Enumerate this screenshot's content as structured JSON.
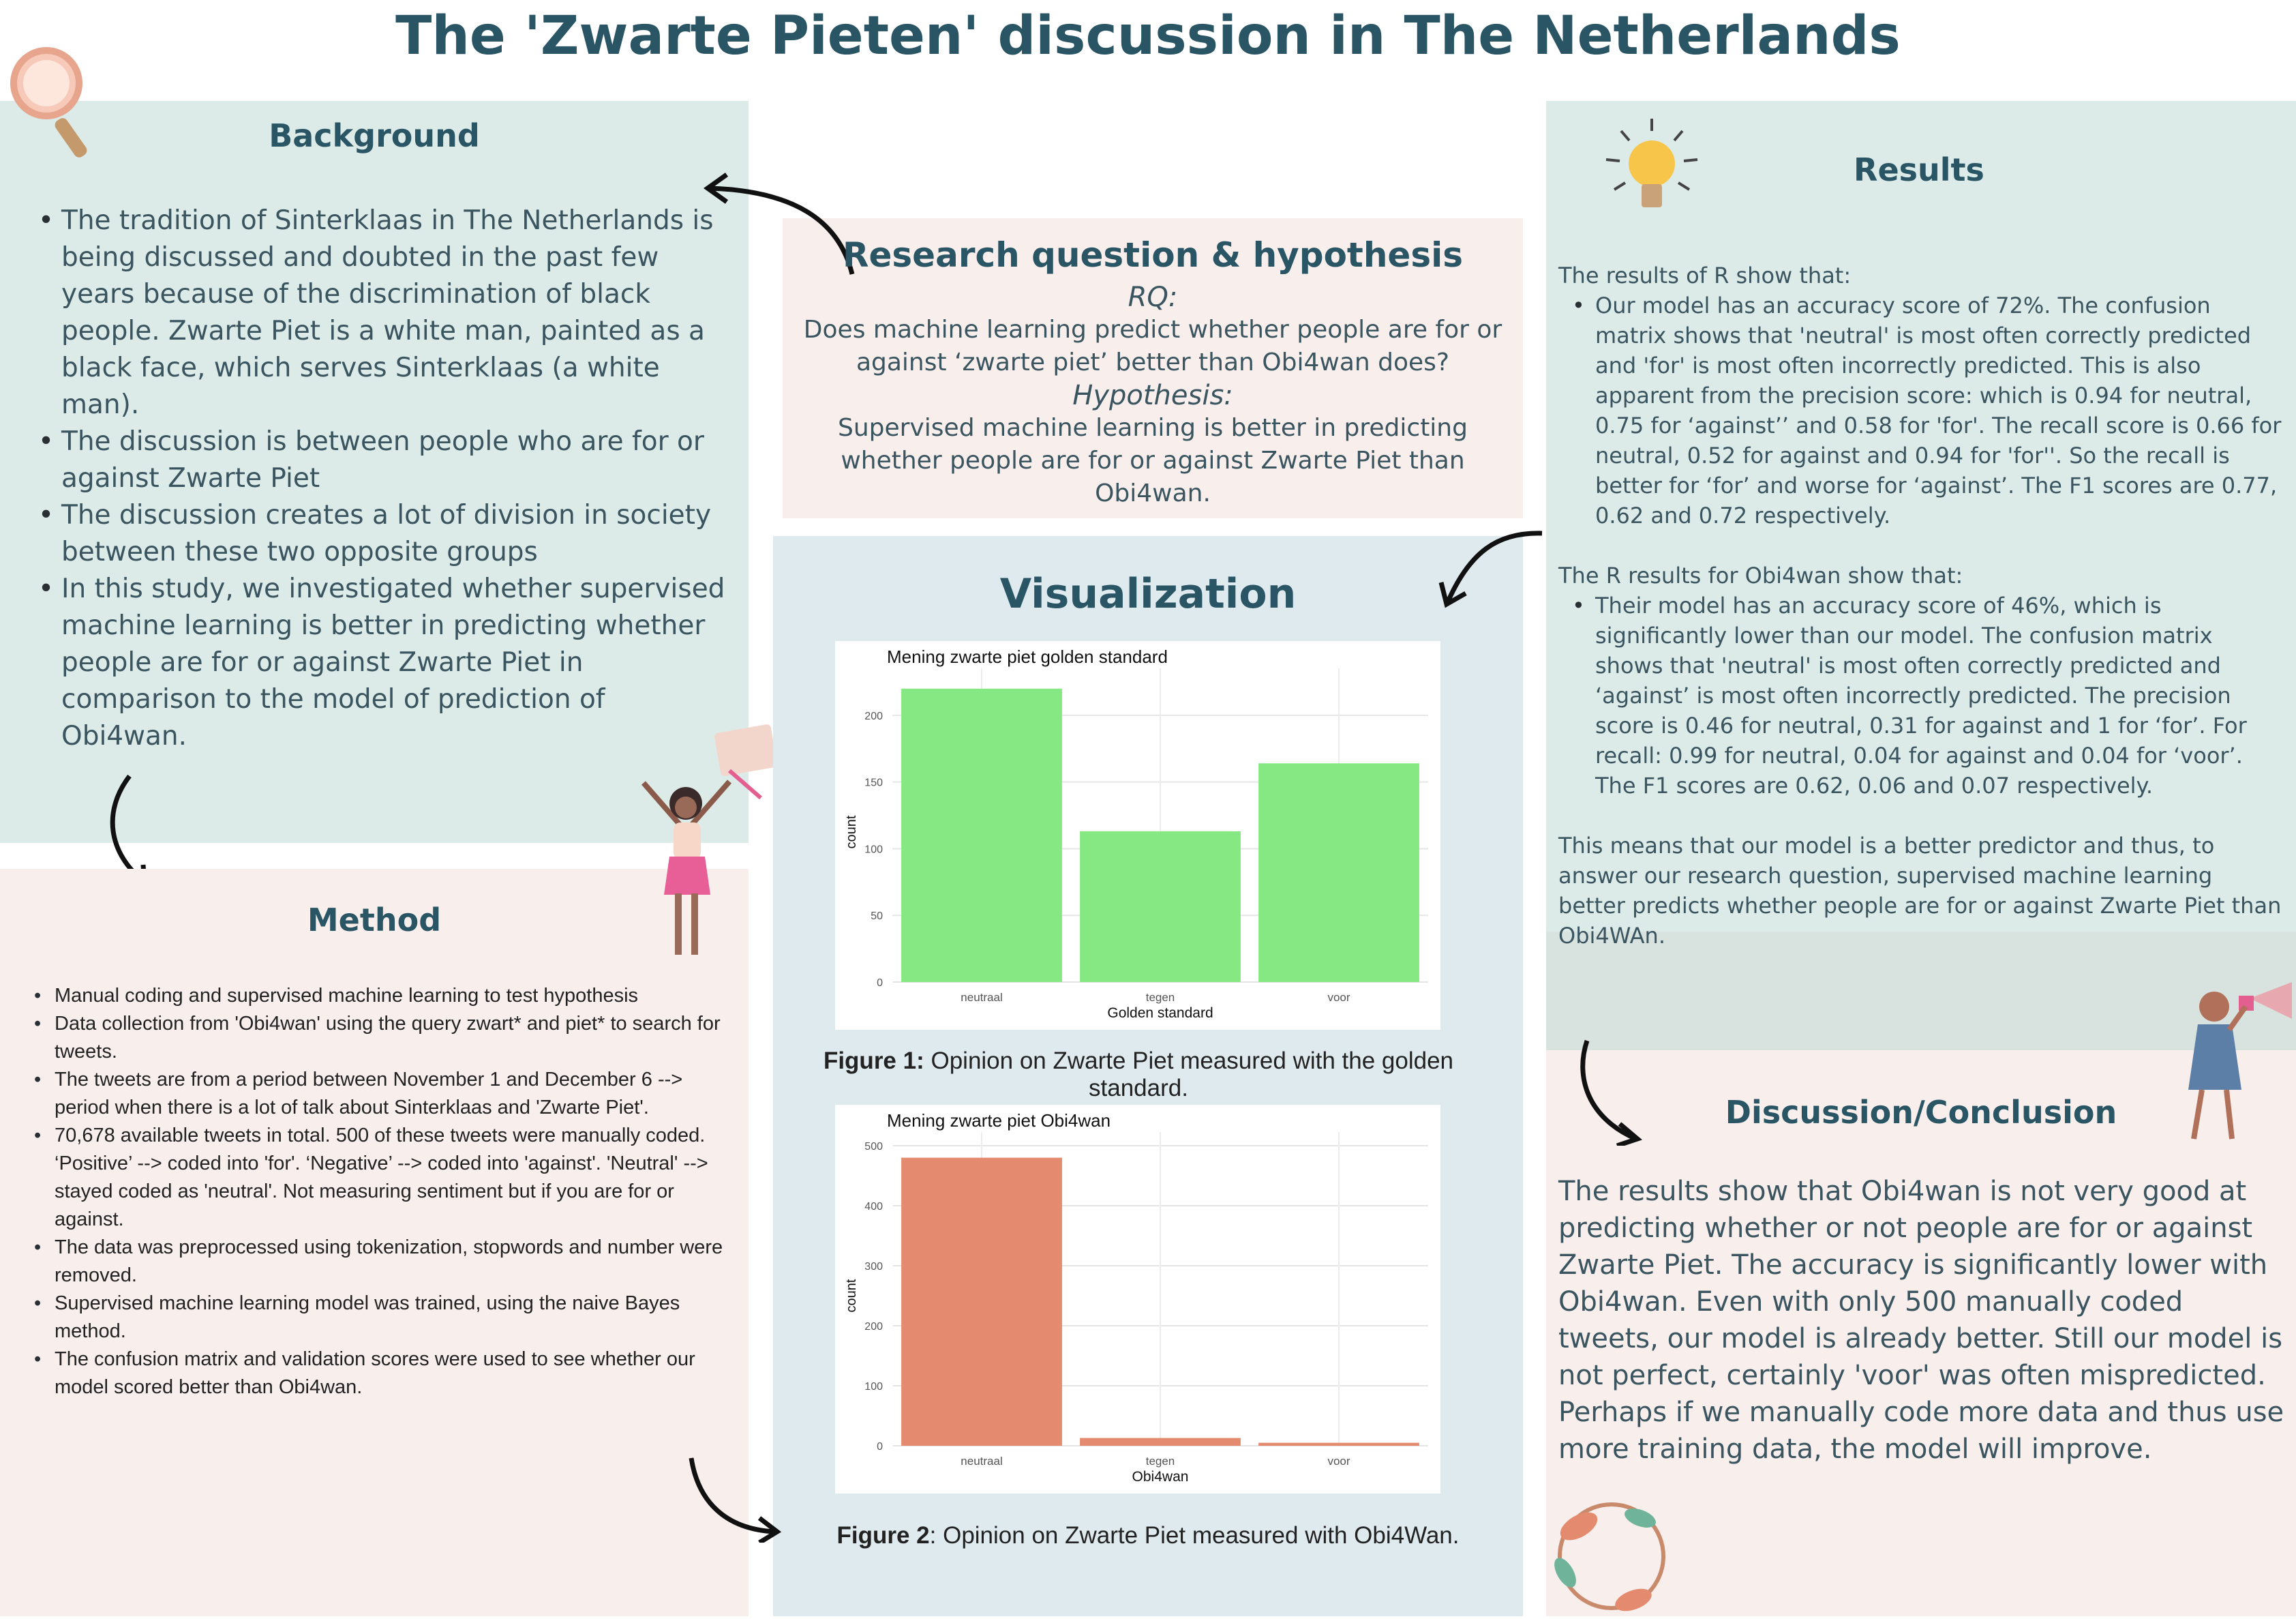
{
  "title": "The 'Zwarte Pieten' discussion in The Netherlands",
  "background": {
    "heading": "Background",
    "items": [
      "The tradition of Sinterklaas in The Netherlands is being discussed and doubted in the past few years because of the discrimination of black people. Zwarte Piet is a white man, painted as a black face, which serves Sinterklaas (a white man).",
      "The discussion is between people who are for or against Zwarte Piet",
      "The discussion creates a lot of division in society between these two opposite groups",
      "In this study, we investigated whether supervised machine learning is better in predicting whether people are for or against Zwarte Piet in comparison to the model of prediction of Obi4wan."
    ]
  },
  "method": {
    "heading": "Method",
    "items": [
      " Manual coding and supervised machine learning to test hypothesis",
      " Data collection from 'Obi4wan' using the query zwart* and piet* to search for tweets.",
      "The tweets are from a period between November 1 and December 6 --> period when there is a lot of talk about Sinterklaas and 'Zwarte Piet'.",
      "70,678 available tweets in total. 500 of these tweets were manually coded. ‘Positive’ --> coded into 'for'. ‘Negative’ --> coded into 'against'. 'Neutral' --> stayed coded as 'neutral'. Not measuring sentiment but if you are for or against.",
      "The data was preprocessed using tokenization, stopwords and number were removed.",
      "Supervised machine learning model  was trained, using the naive Bayes method.",
      "The confusion matrix and validation scores were used to see whether our model scored better than Obi4wan."
    ]
  },
  "research": {
    "heading": "Research question & hypothesis",
    "rq_label": "RQ:",
    "rq_text": "Does machine learning predict whether people are for or against ‘zwarte piet’ better than Obi4wan does?",
    "hyp_label": "Hypothesis:",
    "hyp_text": "Supervised machine learning is better in predicting whether people are for or against Zwarte Piet than Obi4wan."
  },
  "visualization": {
    "heading": "Visualization",
    "fig1_label": "Figure 1:",
    "fig1_text": " Opinion on Zwarte Piet measured with the golden standard.",
    "fig2_label": "Figure 2",
    "fig2_text": ":  Opinion on Zwarte Piet measured with Obi4Wan."
  },
  "chart_data": [
    {
      "type": "bar",
      "title": "Mening zwarte piet golden standard",
      "xlabel": "Golden standard",
      "ylabel": "count",
      "categories": [
        "neutraal",
        "tegen",
        "voor"
      ],
      "values": [
        220,
        113,
        164
      ],
      "ylim": [
        0,
        225
      ],
      "yticks": [
        0,
        50,
        100,
        150,
        200
      ],
      "color": "#86e882",
      "grid": true
    },
    {
      "type": "bar",
      "title": "Mening zwarte piet Obi4wan",
      "xlabel": "Obi4wan",
      "ylabel": "count",
      "categories": [
        "neutraal",
        "tegen",
        "voor"
      ],
      "values": [
        480,
        13,
        5
      ],
      "ylim": [
        0,
        500
      ],
      "yticks": [
        0,
        100,
        200,
        300,
        400,
        500
      ],
      "color": "#e48a6e",
      "grid": true
    }
  ],
  "results": {
    "heading": "Results",
    "intro1": "The results of R show that:",
    "item1": "Our model has an accuracy score of 72%. The confusion matrix shows that 'neutral' is most often correctly predicted and 'for' is most often incorrectly predicted. This is also apparent from the precision score: which is 0.94 for neutral, 0.75 for ‘against’’ and 0.58 for 'for'. The recall score is 0.66 for neutral, 0.52 for against and 0.94 for 'for''. So the recall is better for ‘for’ and worse for ‘against’. The F1 scores are 0.77, 0.62 and 0.72 respectively.",
    "intro2": "The R results for Obi4wan show that:",
    "item2": "Their model has an accuracy score of 46%, which is significantly lower than our model. The confusion matrix shows that 'neutral' is most often correctly predicted and ‘against’ is most often incorrectly predicted. The precision score is 0.46 for neutral, 0.31 for against and 1 for ‘for’. For recall: 0.99 for neutral, 0.04 for against and 0.04 for ‘voor’. The F1 scores are 0.62, 0.06 and 0.07 respectively.",
    "conclusion": "This means that our model is a better predictor and thus, to answer our research question, supervised machine learning better predicts whether people are for or against Zwarte Piet than Obi4WAn."
  },
  "discussion": {
    "heading": "Discussion/Conclusion",
    "text": "The results show that Obi4wan is not very good at predicting whether or not people are for or against Zwarte Piet. The accuracy is significantly lower with Obi4wan. Even with only 500 manually coded tweets, our model is already better. Still our model is not perfect, certainly 'voor' was often mispredicted. Perhaps if we manually code more data and thus use more training data, the model will improve."
  },
  "colors": {
    "heading": "#2a5565",
    "mint_panel": "#dcebe8",
    "pink_panel": "#f8eeec",
    "blue_panel": "#dfeaef"
  },
  "icons": [
    "magnifier-icon",
    "lightbulb-icon",
    "woman-with-sign-illustration",
    "woman-with-megaphone-illustration",
    "floral-wreath-illustration",
    "curved-arrow-icon"
  ]
}
